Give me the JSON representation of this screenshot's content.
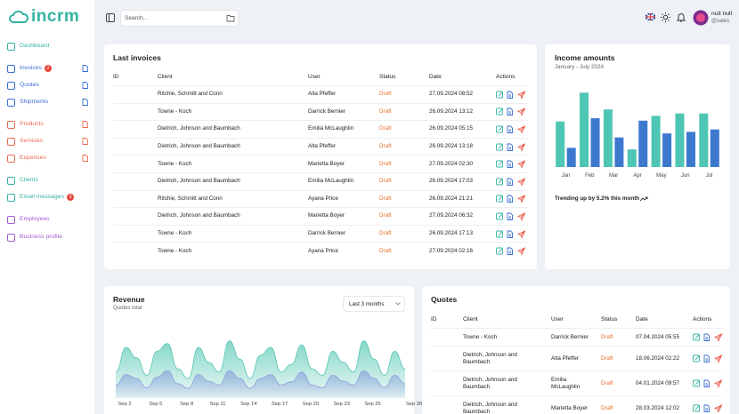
{
  "header": {
    "logo": "incrm",
    "search_placeholder": "Search...",
    "user_name": "null null",
    "user_role": "@sales"
  },
  "sidebar": {
    "nav": [
      {
        "label": "Dashboard",
        "color": "#35b3a2"
      },
      {
        "label": "Invoices",
        "badge": 2,
        "color": "#3a6fd2"
      },
      {
        "label": "Quotes",
        "color": "#3a6fd2"
      },
      {
        "label": "Shipments",
        "color": "#3a6fd2"
      },
      {
        "label": "Products",
        "color": "#ea6a52"
      },
      {
        "label": "Services",
        "color": "#ea6a52"
      },
      {
        "label": "Expenses",
        "color": "#ea6a52"
      },
      {
        "label": "Clients",
        "color": "#35b3a2"
      },
      {
        "label": "Email messages",
        "badge": 3,
        "color": "#35b3a2"
      },
      {
        "label": "Employees",
        "color": "#a35bd0"
      },
      {
        "label": "Business profile",
        "color": "#a35bd0"
      }
    ]
  },
  "invoices": {
    "title": "Last invoices",
    "columns": [
      "ID",
      "Client",
      "User",
      "Status",
      "Date",
      "Actions"
    ],
    "rows": [
      [
        "Ritchie, Schmitt and Conn",
        "Alta Pfeffer",
        "Draft",
        "27.09.2024 08:52"
      ],
      [
        "Towne - Koch",
        "Darrick Bernier",
        "Draft",
        "26.09.2024 13:12"
      ],
      [
        "Dietrich, Johnson and Baumbach",
        "Emilia McLaughlin",
        "Draft",
        "26.09.2024 05:15"
      ],
      [
        "Dietrich, Johnson and Baumbach",
        "Alta Pfeffer",
        "Draft",
        "26.09.2024 13:18"
      ],
      [
        "Towne - Koch",
        "Marietta Boyer",
        "Draft",
        "27.09.2024 02:30"
      ],
      [
        "Dietrich, Johnson and Baumbach",
        "Emilia McLaughlin",
        "Draft",
        "26.09.2024 17:03"
      ],
      [
        "Ritchie, Schmitt and Conn",
        "Ayana Price",
        "Draft",
        "26.09.2024 21:21"
      ],
      [
        "Dietrich, Johnson and Baumbach",
        "Marietta Boyer",
        "Draft",
        "27.09.2024 06:32"
      ],
      [
        "Towne - Koch",
        "Darrick Bernier",
        "Draft",
        "26.09.2024 17:13"
      ],
      [
        "Towne - Koch",
        "Ayana Price",
        "Draft",
        "27.09.2024 02:16"
      ]
    ]
  },
  "quotes": {
    "title": "Quotes",
    "columns": [
      "ID",
      "Client",
      "User",
      "Status",
      "Date",
      "Actions"
    ],
    "rows": [
      [
        "Towne - Koch",
        "Darrick Bernier",
        "Draft",
        "07.04.2024 05:55"
      ],
      [
        "Dietrich, Johnson and Baumbach",
        "Alta Pfeffer",
        "Draft",
        "18.06.2024 02:22"
      ],
      [
        "Dietrich, Johnson and Baumbach",
        "Emilia McLaughlin",
        "Draft",
        "04.01.2024 09:57"
      ],
      [
        "Dietrich, Johnson and Baumbach",
        "Marietta Boyer",
        "Draft",
        "28.03.2024 12:02"
      ]
    ]
  },
  "chart_data": [
    {
      "type": "bar",
      "title": "Income amounts",
      "subtitle": "January - July 2024",
      "caption": "Trending up by 5.2% this month",
      "categories": [
        "Jan",
        "Feb",
        "Mar",
        "Apr",
        "May",
        "Jun",
        "Jul"
      ],
      "ylim": [
        0,
        100
      ],
      "series": [
        {
          "color": "#4ec6b3",
          "values": [
            57,
            93,
            72,
            22,
            64,
            67,
            67
          ]
        },
        {
          "color": "#3d78cf",
          "values": [
            24,
            61,
            37,
            58,
            42,
            44,
            47
          ]
        }
      ]
    },
    {
      "type": "area",
      "title": "Revenue",
      "subtitle": "Quotes total",
      "range_select": "Last 3 months",
      "categories": [
        "Sep 2",
        null,
        null,
        "Sep 5",
        null,
        null,
        "Sep 8",
        null,
        null,
        "Sep 11",
        null,
        null,
        "Sep 14",
        null,
        null,
        "Sep 17",
        null,
        null,
        "Sep 20",
        null,
        null,
        "Sep 23",
        null,
        null,
        "Sep 26",
        null,
        null,
        null,
        "Sep 30"
      ],
      "ylim": [
        0,
        100
      ],
      "series": [
        {
          "color": "#5cc9b6",
          "values": [
            40,
            78,
            62,
            35,
            72,
            84,
            45,
            30,
            78,
            55,
            40,
            88,
            60,
            30,
            66,
            78,
            40,
            52,
            82,
            45,
            35,
            72,
            55,
            40,
            88,
            60,
            35,
            72,
            45
          ]
        },
        {
          "color": "#8ea6dc",
          "values": [
            20,
            36,
            30,
            16,
            32,
            42,
            22,
            15,
            36,
            26,
            20,
            42,
            30,
            15,
            30,
            36,
            20,
            25,
            40,
            20,
            16,
            35,
            26,
            20,
            42,
            30,
            16,
            35,
            22
          ]
        }
      ]
    }
  ]
}
